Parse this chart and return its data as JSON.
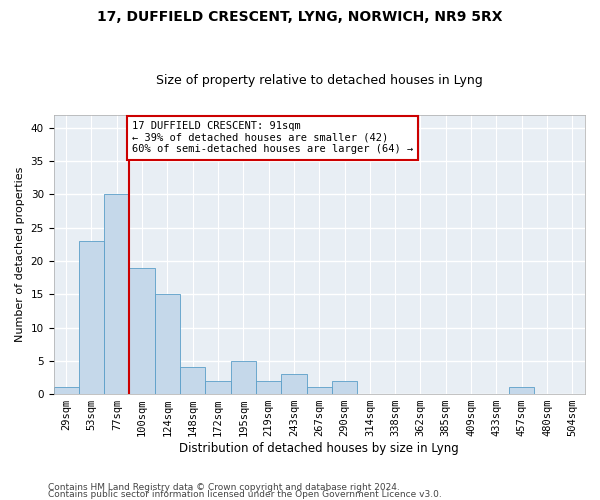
{
  "title1": "17, DUFFIELD CRESCENT, LYNG, NORWICH, NR9 5RX",
  "title2": "Size of property relative to detached houses in Lyng",
  "xlabel": "Distribution of detached houses by size in Lyng",
  "ylabel": "Number of detached properties",
  "bins": [
    "29sqm",
    "53sqm",
    "77sqm",
    "100sqm",
    "124sqm",
    "148sqm",
    "172sqm",
    "195sqm",
    "219sqm",
    "243sqm",
    "267sqm",
    "290sqm",
    "314sqm",
    "338sqm",
    "362sqm",
    "385sqm",
    "409sqm",
    "433sqm",
    "457sqm",
    "480sqm",
    "504sqm"
  ],
  "bar_values": [
    1,
    23,
    30,
    19,
    15,
    4,
    2,
    5,
    2,
    3,
    1,
    2,
    0,
    0,
    0,
    0,
    0,
    0,
    1,
    0,
    0
  ],
  "bar_color": "#c5d8ea",
  "bar_edgecolor": "#5a9ec8",
  "vline_color": "#cc0000",
  "annotation_line1": "17 DUFFIELD CRESCENT: 91sqm",
  "annotation_line2": "← 39% of detached houses are smaller (42)",
  "annotation_line3": "60% of semi-detached houses are larger (64) →",
  "annotation_box_edgecolor": "#cc0000",
  "annotation_box_facecolor": "#ffffff",
  "ylim_max": 42,
  "yticks": [
    0,
    5,
    10,
    15,
    20,
    25,
    30,
    35,
    40
  ],
  "footer1": "Contains HM Land Registry data © Crown copyright and database right 2024.",
  "footer2": "Contains public sector information licensed under the Open Government Licence v3.0.",
  "bg_color": "#e8eef4",
  "plot_bg_color": "#e8eef4",
  "fig_bg_color": "#ffffff",
  "grid_color": "#ffffff",
  "title1_fontsize": 10,
  "title2_fontsize": 9,
  "xlabel_fontsize": 8.5,
  "ylabel_fontsize": 8,
  "tick_fontsize": 7.5,
  "annot_fontsize": 7.5,
  "footer_fontsize": 6.5
}
